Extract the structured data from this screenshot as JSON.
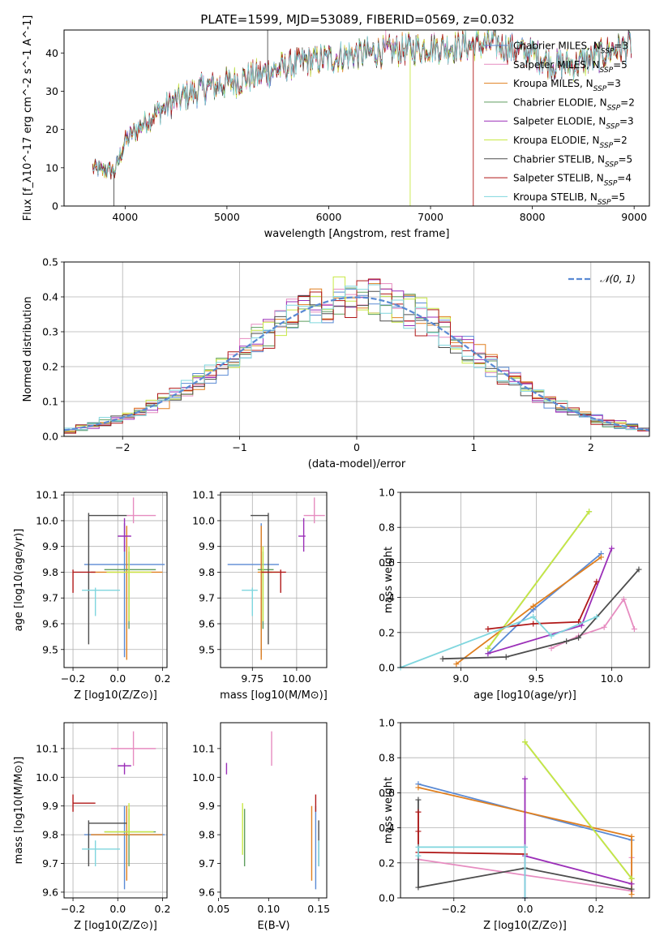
{
  "figure_title": "PLATE=1599, MJD=53089, FIBERID=0569, z=0.032",
  "colors": {
    "Chabrier MILES": "#5a8ad4",
    "Salpeter MILES": "#e68cc0",
    "Kroupa MILES": "#e07f1f",
    "Chabrier ELODIE": "#5f9e5f",
    "Salpeter ELODIE": "#9b2fb8",
    "Kroupa ELODIE": "#c8e844",
    "Chabrier STELIB": "#4d4d4d",
    "Salpeter STELIB": "#b01818",
    "Kroupa STELIB": "#7fd6de"
  },
  "chart_data": [
    {
      "id": "spectrum",
      "type": "line",
      "xlabel": "wavelength [Angstrom, rest frame]",
      "ylabel": "Flux [f_λ10^-17 erg cm^-2 s^-1 A^-1]",
      "xlim": [
        3400,
        9150
      ],
      "ylim": [
        0,
        46
      ],
      "xticks": [
        4000,
        5000,
        6000,
        7000,
        8000,
        9000
      ],
      "yticks": [
        0,
        10,
        20,
        30,
        40
      ],
      "grid": false,
      "legend": "right",
      "series": [
        {
          "name": "Chabrier MILES, N_SSP=3"
        },
        {
          "name": "Salpeter MILES, N_SSP=5"
        },
        {
          "name": "Kroupa MILES, N_SSP=3"
        },
        {
          "name": "Chabrier ELODIE, N_SSP=2"
        },
        {
          "name": "Salpeter ELODIE, N_SSP=3"
        },
        {
          "name": "Kroupa ELODIE, N_SSP=2"
        },
        {
          "name": "Chabrier STELIB, N_SSP=5"
        },
        {
          "name": "Salpeter STELIB, N_SSP=4"
        },
        {
          "name": "Kroupa STELIB, N_SSP=5"
        }
      ],
      "continuum": {
        "x": [
          3680,
          3900,
          4000,
          4200,
          4400,
          4600,
          4800,
          5000,
          5200,
          5400,
          5600,
          5800,
          6000,
          6200,
          6400,
          6600,
          6800,
          7000,
          7200,
          7400,
          7600,
          7800,
          8000,
          8200,
          8400,
          8600,
          8800,
          9000
        ],
        "y": [
          10,
          9,
          17,
          22,
          26,
          29,
          31,
          32,
          33.5,
          35,
          36.5,
          38,
          38.5,
          39.5,
          40,
          40.5,
          41,
          41.5,
          41.5,
          42,
          42.5,
          41,
          40,
          37,
          37,
          38.5,
          41,
          42
        ]
      }
    },
    {
      "id": "residuals",
      "type": "step",
      "xlabel": "(data-model)/error",
      "ylabel": "Normed distribution",
      "xlim": [
        -2.5,
        2.5
      ],
      "ylim": [
        0,
        0.5
      ],
      "xticks": [
        -2,
        -1,
        0,
        1,
        2
      ],
      "yticks": [
        0.0,
        0.1,
        0.2,
        0.3,
        0.4,
        0.5
      ],
      "grid": true,
      "legend": "top-right",
      "reference": {
        "name": "N(0,1)",
        "style": "dashed",
        "color": "#5a8ad4"
      },
      "bins": {
        "start": -2.5,
        "width": 0.1
      }
    },
    {
      "id": "age-vs-Z",
      "type": "errorbar",
      "xlabel": "Z [log10(Z/Z⊙)]",
      "ylabel": "age [log10(age/yr)]",
      "xlim": [
        -0.24,
        0.22
      ],
      "ylim": [
        9.43,
        10.11
      ],
      "xticks": [
        -0.2,
        0.0,
        0.2
      ],
      "yticks": [
        9.5,
        9.6,
        9.7,
        9.8,
        9.9,
        10.0,
        10.1
      ],
      "grid": true,
      "points": [
        {
          "s": "Chabrier MILES",
          "x": 0.03,
          "xe": [
            0.18,
            0.18
          ],
          "y": 9.83,
          "ye": [
            0.36,
            0.16
          ]
        },
        {
          "s": "Salpeter MILES",
          "x": 0.07,
          "xe": [
            0.03,
            0.1
          ],
          "y": 10.02,
          "ye": [
            0.03,
            0.07
          ]
        },
        {
          "s": "Kroupa MILES",
          "x": 0.04,
          "xe": [
            0.16,
            0.16
          ],
          "y": 9.8,
          "ye": [
            0.34,
            0.18
          ]
        },
        {
          "s": "Chabrier ELODIE",
          "x": 0.05,
          "xe": [
            0.11,
            0.12
          ],
          "y": 9.81,
          "ye": [
            0.23,
            0.07
          ]
        },
        {
          "s": "Salpeter ELODIE",
          "x": 0.03,
          "xe": [
            0.03,
            0.03
          ],
          "y": 9.94,
          "ye": [
            0.06,
            0.07
          ]
        },
        {
          "s": "Kroupa ELODIE",
          "x": 0.05,
          "xe": [
            0.1,
            0.1
          ],
          "y": 9.8,
          "ye": [
            0.19,
            0.1
          ]
        },
        {
          "s": "Chabrier STELIB",
          "x": -0.13,
          "xe": [
            0.0,
            0.17
          ],
          "y": 10.02,
          "ye": [
            0.5,
            0.01
          ]
        },
        {
          "s": "Salpeter STELIB",
          "x": -0.2,
          "xe": [
            0.0,
            0.1
          ],
          "y": 9.8,
          "ye": [
            0.08,
            0.01
          ]
        },
        {
          "s": "Kroupa STELIB",
          "x": -0.1,
          "xe": [
            0.06,
            0.11
          ],
          "y": 9.73,
          "ye": [
            0.1,
            0.01
          ]
        }
      ]
    },
    {
      "id": "age-vs-mass",
      "type": "errorbar",
      "xlabel": "mass [log10(M/M⊙)]",
      "ylabel": "",
      "xlim": [
        9.57,
        10.17
      ],
      "ylim": [
        9.43,
        10.11
      ],
      "xticks": [
        9.75,
        10.0
      ],
      "yticks": [
        9.5,
        9.6,
        9.7,
        9.8,
        9.9,
        10.0,
        10.1
      ],
      "grid": true,
      "points": [
        {
          "s": "Chabrier MILES",
          "x": 9.8,
          "xe": [
            0.19,
            0.1
          ],
          "y": 9.83,
          "ye": [
            0.36,
            0.16
          ]
        },
        {
          "s": "Salpeter MILES",
          "x": 10.1,
          "xe": [
            0.06,
            0.06
          ],
          "y": 10.02,
          "ye": [
            0.03,
            0.07
          ]
        },
        {
          "s": "Kroupa MILES",
          "x": 9.8,
          "xe": [
            0.02,
            0.06
          ],
          "y": 9.8,
          "ye": [
            0.34,
            0.18
          ]
        },
        {
          "s": "Chabrier ELODIE",
          "x": 9.81,
          "xe": [
            0.03,
            0.06
          ],
          "y": 9.81,
          "ye": [
            0.23,
            0.07
          ]
        },
        {
          "s": "Salpeter ELODIE",
          "x": 10.04,
          "xe": [
            0.03,
            0.01
          ],
          "y": 9.94,
          "ye": [
            0.06,
            0.07
          ]
        },
        {
          "s": "Kroupa ELODIE",
          "x": 9.81,
          "xe": [
            0.01,
            0.09
          ],
          "y": 9.8,
          "ye": [
            0.19,
            0.1
          ]
        },
        {
          "s": "Chabrier STELIB",
          "x": 9.84,
          "xe": [
            0.1,
            0.0
          ],
          "y": 10.02,
          "ye": [
            0.5,
            0.01
          ]
        },
        {
          "s": "Salpeter STELIB",
          "x": 9.91,
          "xe": [
            0.11,
            0.03
          ],
          "y": 9.8,
          "ye": [
            0.08,
            0.01
          ]
        },
        {
          "s": "Kroupa STELIB",
          "x": 9.75,
          "xe": [
            0.06,
            0.03
          ],
          "y": 9.73,
          "ye": [
            0.1,
            0.01
          ]
        }
      ]
    },
    {
      "id": "weight-vs-age",
      "type": "line",
      "xlabel": "age [log10(age/yr)]",
      "ylabel": "mass weight",
      "xlim": [
        8.6,
        10.25
      ],
      "ylim": [
        0,
        1.0
      ],
      "xticks": [
        9.0,
        9.5,
        10.0
      ],
      "yticks": [
        0.0,
        0.2,
        0.4,
        0.6,
        0.8,
        1.0
      ],
      "grid": true,
      "series": [
        {
          "s": "Chabrier MILES",
          "x": [
            9.18,
            9.48,
            9.93
          ],
          "y": [
            0.08,
            0.33,
            0.65
          ]
        },
        {
          "s": "Salpeter MILES",
          "x": [
            9.6,
            9.78,
            9.95,
            10.08,
            10.15
          ],
          "y": [
            0.11,
            0.18,
            0.23,
            0.39,
            0.22
          ]
        },
        {
          "s": "Kroupa MILES",
          "x": [
            8.97,
            9.48,
            9.93
          ],
          "y": [
            0.02,
            0.35,
            0.63
          ]
        },
        {
          "s": "Chabrier ELODIE",
          "x": [
            9.18,
            9.85
          ],
          "y": [
            0.11,
            0.89
          ]
        },
        {
          "s": "Salpeter ELODIE",
          "x": [
            9.18,
            9.8,
            10.0
          ],
          "y": [
            0.08,
            0.24,
            0.68
          ]
        },
        {
          "s": "Kroupa ELODIE",
          "x": [
            9.18,
            9.85
          ],
          "y": [
            0.11,
            0.89
          ]
        },
        {
          "s": "Chabrier STELIB",
          "x": [
            8.88,
            9.3,
            9.7,
            9.78,
            10.18
          ],
          "y": [
            0.05,
            0.06,
            0.15,
            0.17,
            0.56
          ]
        },
        {
          "s": "Salpeter STELIB",
          "x": [
            9.18,
            9.48,
            9.78,
            9.9
          ],
          "y": [
            0.22,
            0.25,
            0.26,
            0.49
          ]
        },
        {
          "s": "Kroupa STELIB",
          "x": [
            8.6,
            9.48,
            9.6,
            9.9
          ],
          "y": [
            0.0,
            0.29,
            0.18,
            0.29
          ]
        }
      ]
    },
    {
      "id": "mass-vs-Z",
      "type": "errorbar",
      "xlabel": "Z [log10(Z/Z⊙)]",
      "ylabel": "mass [log10(M/M⊙)]",
      "xlim": [
        -0.24,
        0.22
      ],
      "ylim": [
        9.58,
        10.19
      ],
      "xticks": [
        -0.2,
        0.0,
        0.2
      ],
      "yticks": [
        9.6,
        9.7,
        9.8,
        9.9,
        10.0,
        10.1
      ],
      "grid": true,
      "points": [
        {
          "s": "Chabrier MILES",
          "x": 0.03,
          "xe": [
            0.18,
            0.18
          ],
          "y": 9.8,
          "ye": [
            0.19,
            0.1
          ]
        },
        {
          "s": "Salpeter MILES",
          "x": 0.07,
          "xe": [
            0.1,
            0.1
          ],
          "y": 10.1,
          "ye": [
            0.06,
            0.06
          ]
        },
        {
          "s": "Kroupa MILES",
          "x": 0.04,
          "xe": [
            0.16,
            0.16
          ],
          "y": 9.8,
          "ye": [
            0.16,
            0.1
          ]
        },
        {
          "s": "Chabrier ELODIE",
          "x": 0.05,
          "xe": [
            0.11,
            0.12
          ],
          "y": 9.81,
          "ye": [
            0.12,
            0.08
          ]
        },
        {
          "s": "Salpeter ELODIE",
          "x": 0.03,
          "xe": [
            0.03,
            0.03
          ],
          "y": 10.04,
          "ye": [
            0.03,
            0.01
          ]
        },
        {
          "s": "Kroupa ELODIE",
          "x": 0.05,
          "xe": [
            0.11,
            0.11
          ],
          "y": 9.81,
          "ye": [
            0.01,
            0.1
          ]
        },
        {
          "s": "Chabrier STELIB",
          "x": -0.13,
          "xe": [
            0.0,
            0.17
          ],
          "y": 9.84,
          "ye": [
            0.15,
            0.01
          ]
        },
        {
          "s": "Salpeter STELIB",
          "x": -0.2,
          "xe": [
            0.0,
            0.1
          ],
          "y": 9.91,
          "ye": [
            0.03,
            0.03
          ]
        },
        {
          "s": "Kroupa STELIB",
          "x": -0.1,
          "xe": [
            0.06,
            0.11
          ],
          "y": 9.75,
          "ye": [
            0.06,
            0.03
          ]
        }
      ]
    },
    {
      "id": "mass-vs-EBV",
      "type": "errorbar",
      "xlabel": "E(B-V)",
      "ylabel": "",
      "xlim": [
        0.052,
        0.158
      ],
      "ylim": [
        9.58,
        10.19
      ],
      "xticks": [
        0.05,
        0.1,
        0.15
      ],
      "yticks": [
        9.6,
        9.7,
        9.8,
        9.9,
        10.0,
        10.1
      ],
      "grid": false,
      "points": [
        {
          "s": "Chabrier MILES",
          "x": 0.147,
          "y": 9.8,
          "ye": [
            0.19,
            0.1
          ]
        },
        {
          "s": "Salpeter MILES",
          "x": 0.103,
          "y": 10.1,
          "ye": [
            0.06,
            0.06
          ]
        },
        {
          "s": "Kroupa MILES",
          "x": 0.143,
          "y": 9.8,
          "ye": [
            0.16,
            0.1
          ]
        },
        {
          "s": "Chabrier ELODIE",
          "x": 0.076,
          "y": 9.81,
          "ye": [
            0.12,
            0.08
          ]
        },
        {
          "s": "Salpeter ELODIE",
          "x": 0.058,
          "y": 10.04,
          "ye": [
            0.03,
            0.01
          ]
        },
        {
          "s": "Kroupa ELODIE",
          "x": 0.074,
          "y": 9.81,
          "ye": [
            0.08,
            0.1
          ]
        },
        {
          "s": "Chabrier STELIB",
          "x": 0.15,
          "y": 9.84,
          "ye": [
            0.15,
            0.01
          ]
        },
        {
          "s": "Salpeter STELIB",
          "x": 0.147,
          "y": 9.91,
          "ye": [
            0.03,
            0.03
          ]
        },
        {
          "s": "Kroupa STELIB",
          "x": 0.15,
          "y": 9.75,
          "ye": [
            0.06,
            0.03
          ]
        }
      ]
    },
    {
      "id": "weight-vs-Z",
      "type": "line",
      "xlabel": "Z [log10(Z/Z⊙)]",
      "ylabel": "mass weight",
      "xlim": [
        -0.35,
        0.35
      ],
      "ylim": [
        0,
        1.0
      ],
      "xticks": [
        -0.2,
        0.0,
        0.2
      ],
      "yticks": [
        0.0,
        0.2,
        0.4,
        0.6,
        0.8,
        1.0
      ],
      "grid": true,
      "series": [
        {
          "s": "Chabrier MILES",
          "x": [
            -0.3,
            0.3
          ],
          "y": [
            0.65,
            0.33
          ]
        },
        {
          "s": "Salpeter MILES",
          "x": [
            -0.3,
            0.3,
            0.3,
            0.3
          ],
          "y": [
            0.22,
            0.04,
            0.11,
            0.23
          ]
        },
        {
          "s": "Kroupa MILES",
          "x": [
            -0.3,
            0.3,
            0.3
          ],
          "y": [
            0.63,
            0.35,
            0.02
          ]
        },
        {
          "s": "Chabrier ELODIE",
          "x": [
            0.0,
            0.3
          ],
          "y": [
            0.89,
            0.11
          ]
        },
        {
          "s": "Salpeter ELODIE",
          "x": [
            0.0,
            0.0,
            0.0,
            0.3
          ],
          "y": [
            0.68,
            0.0,
            0.24,
            0.08
          ]
        },
        {
          "s": "Kroupa ELODIE",
          "x": [
            0.0,
            0.3
          ],
          "y": [
            0.89,
            0.11
          ]
        },
        {
          "s": "Chabrier STELIB",
          "x": [
            -0.3,
            -0.3,
            0.0,
            0.3
          ],
          "y": [
            0.56,
            0.06,
            0.17,
            0.05
          ]
        },
        {
          "s": "Salpeter STELIB",
          "x": [
            -0.3,
            -0.3,
            -0.3,
            0.0
          ],
          "y": [
            0.49,
            0.38,
            0.26,
            0.25
          ]
        },
        {
          "s": "Kroupa STELIB",
          "x": [
            -0.3,
            -0.3,
            0.0,
            0.0
          ],
          "y": [
            0.24,
            0.29,
            0.29,
            0.0
          ]
        }
      ]
    }
  ]
}
